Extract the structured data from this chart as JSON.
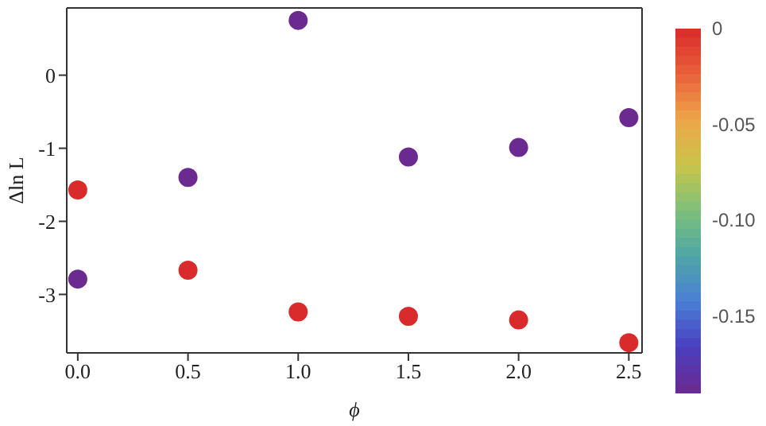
{
  "chart_data": {
    "type": "scatter",
    "xlabel": "ϕ",
    "ylabel": "Δln L",
    "x": [
      0,
      0.5,
      1.0,
      1.5,
      2.0,
      2.5,
      0,
      0.5,
      1.0,
      1.5,
      2.0,
      2.5
    ],
    "values": [
      -1.57,
      -2.67,
      -3.24,
      -3.3,
      -3.35,
      -3.66,
      -2.79,
      -1.4,
      0.75,
      -1.12,
      -0.99,
      -0.58
    ],
    "cvalues": [
      0,
      0,
      0,
      0,
      0,
      0,
      -0.19,
      -0.19,
      -0.19,
      -0.19,
      -0.19,
      -0.19
    ],
    "clim": [
      -0.19,
      0
    ],
    "cticks": [
      0,
      -0.05,
      {
        "value": -0.1,
        "label": "-0.10"
      },
      -0.15
    ],
    "xlim": [
      -0.05,
      2.56
    ],
    "ylim": [
      -3.8,
      0.92
    ],
    "xticks": [
      {
        "value": 0,
        "label": "0.0"
      },
      0.5,
      {
        "value": 1,
        "label": "1.0"
      },
      1.5,
      {
        "value": 2,
        "label": "2.0"
      },
      2.5
    ],
    "yticks": [
      -3,
      -2,
      -1,
      0
    ],
    "marker": "circle"
  }
}
